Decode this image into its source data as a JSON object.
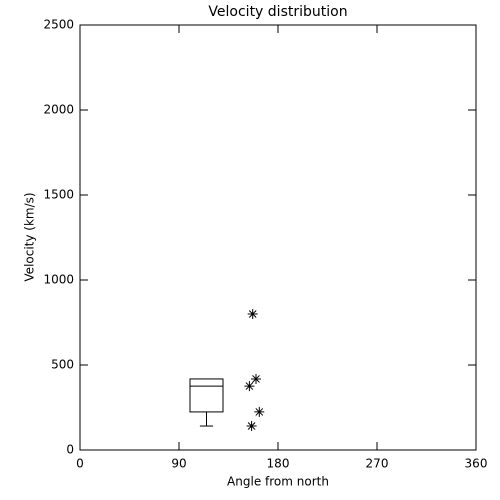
{
  "chart_data": {
    "type": "box",
    "title": "Velocity distribution",
    "xlabel": "Angle from north",
    "ylabel": "Velocity (km/s)",
    "xlim": [
      0,
      360
    ],
    "ylim": [
      0,
      2500
    ],
    "xticks": [
      0,
      90,
      180,
      270,
      360
    ],
    "yticks": [
      0,
      500,
      1000,
      1500,
      2000,
      2500
    ],
    "color": "#000000",
    "box": {
      "x": 115,
      "width": 30,
      "min": 141,
      "q1": 224,
      "median": 376,
      "q3": 418,
      "max": 418
    },
    "points": {
      "x": [
        157,
        160,
        154,
        163,
        156
      ],
      "y": [
        800,
        418,
        376,
        224,
        141
      ]
    }
  }
}
